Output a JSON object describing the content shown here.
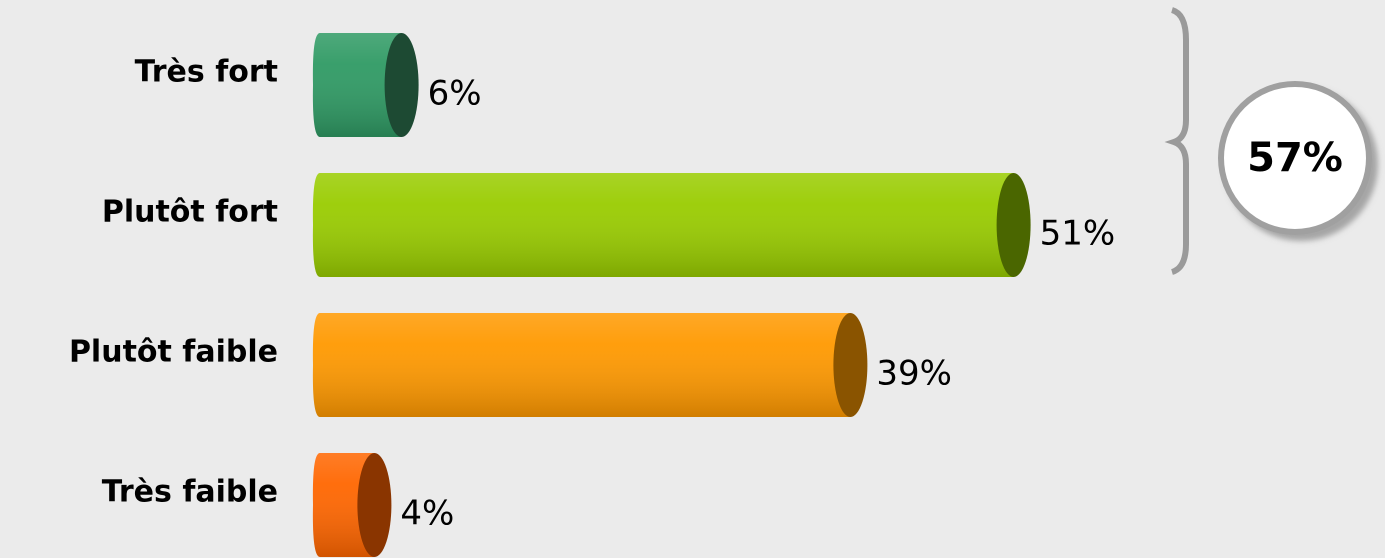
{
  "chart_data": {
    "type": "bar",
    "orientation": "horizontal",
    "categories": [
      "Très fort",
      "Plutôt fort",
      "Plutôt faible",
      "Très faible"
    ],
    "values": [
      6,
      51,
      39,
      4
    ],
    "value_labels": [
      "6%",
      "51%",
      "39%",
      "4%"
    ],
    "colors": [
      "#2f9a64",
      "#99cc00",
      "#ff9900",
      "#ff6600"
    ],
    "cap_colors": [
      "#1d4a33",
      "#4a6600",
      "#8a5400",
      "#8a3500"
    ],
    "annotation": "57%"
  }
}
